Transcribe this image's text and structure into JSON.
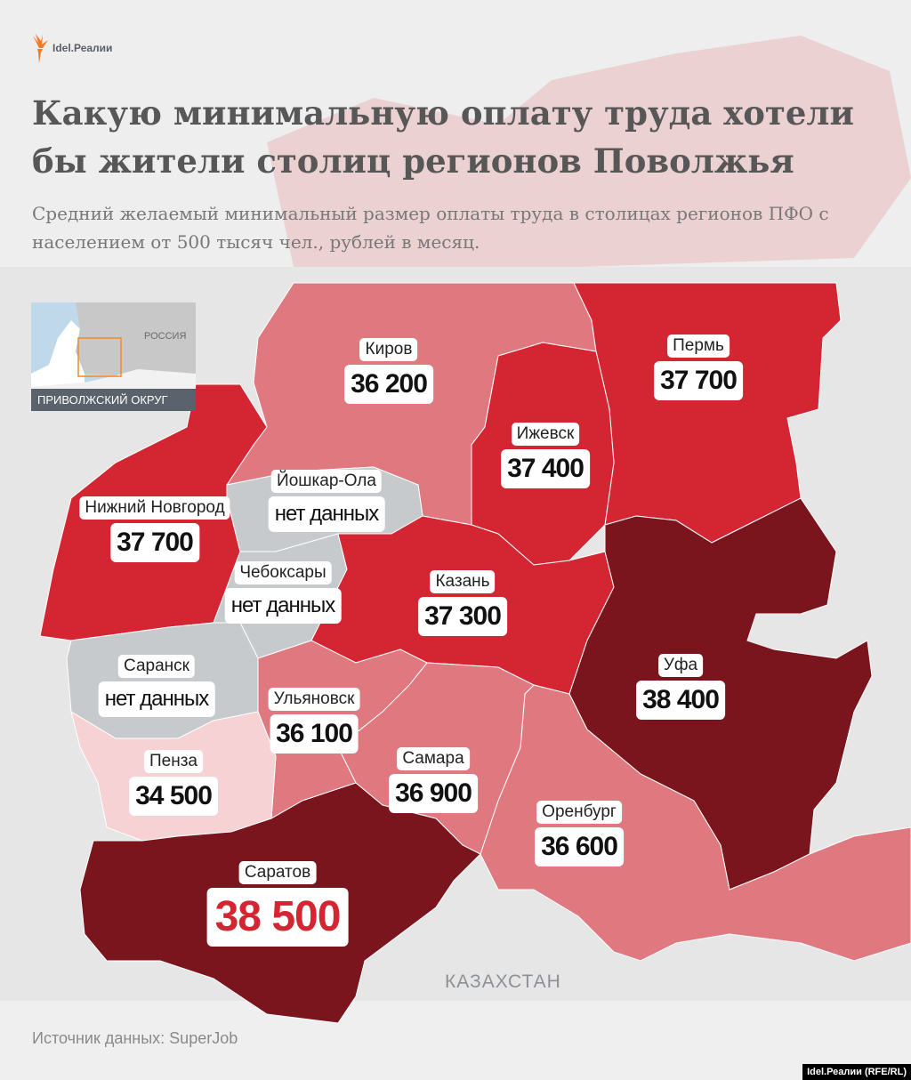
{
  "brand": {
    "logo_text": "Idel.Реалии",
    "credit": "Idel.Реалии (RFE/RL)"
  },
  "title": "Какую минимальную оплату труда хотели бы жители столиц регионов Поволжья",
  "subtitle": "Средний желаемый минимальный размер оплаты труда в столицах регионов ПФО с населением от 500 тысяч чел., рублей в месяц.",
  "inset": {
    "country": "РОССИЯ",
    "label": "ПРИВОЛЖСКИЙ ОКРУГ"
  },
  "colors": {
    "very_low": "#f6d2d5",
    "low": "#e07880",
    "mid": "#d42533",
    "high": "#7a141d",
    "no_data": "#c6cacd",
    "background": "#e4e4e4",
    "highlight_value": "#d42533"
  },
  "regions": [
    {
      "name": "Киров",
      "value": "36 200"
    },
    {
      "name": "Пермь",
      "value": "37 700"
    },
    {
      "name": "Ижевск",
      "value": "37 400"
    },
    {
      "name": "Нижний Новгород",
      "value": "37 700"
    },
    {
      "name": "Йошкар-Ола",
      "value": "нет данных"
    },
    {
      "name": "Чебоксары",
      "value": "нет данных"
    },
    {
      "name": "Казань",
      "value": "37 300"
    },
    {
      "name": "Саранск",
      "value": "нет данных"
    },
    {
      "name": "Ульяновск",
      "value": "36 100"
    },
    {
      "name": "Самара",
      "value": "36 900"
    },
    {
      "name": "Пенза",
      "value": "34 500"
    },
    {
      "name": "Оренбург",
      "value": "36 600"
    },
    {
      "name": "Уфа",
      "value": "38 400"
    },
    {
      "name": "Саратов",
      "value": "38 500"
    }
  ],
  "neighbor_label": "КАЗАХСТАН",
  "source": "Источник данных: SuperJob"
}
